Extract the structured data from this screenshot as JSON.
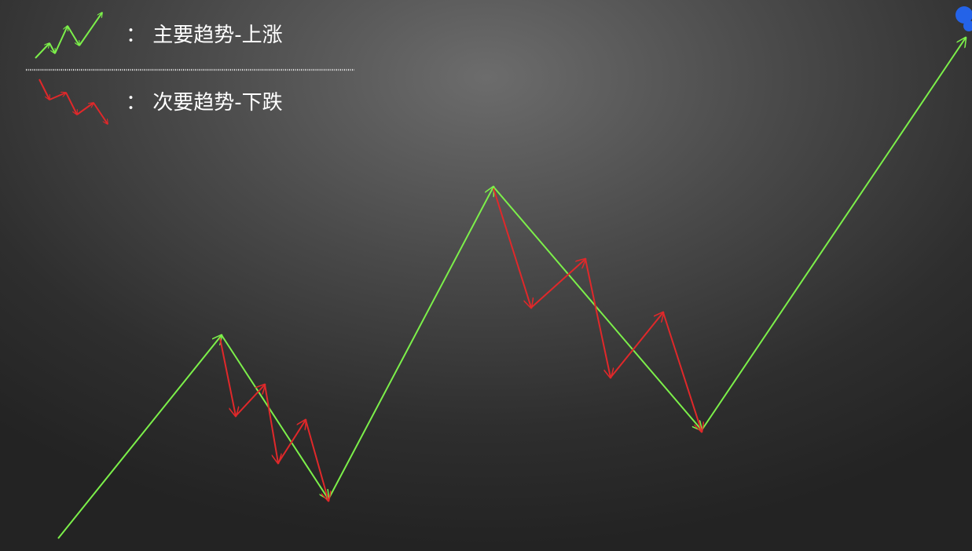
{
  "legend": {
    "major": {
      "label": "：  主要趋势-上涨",
      "color": "#7cf04a",
      "icon": "green-zigzag-up-arrows-icon"
    },
    "minor": {
      "label": "：  次要趋势-下跌",
      "color": "#e0282a",
      "icon": "red-zigzag-down-arrows-icon"
    }
  },
  "colors": {
    "major_trend": "#7cf04a",
    "minor_trend": "#e0282a",
    "divider": "#e8e8e8",
    "corner_dot": "#2463e8"
  }
}
